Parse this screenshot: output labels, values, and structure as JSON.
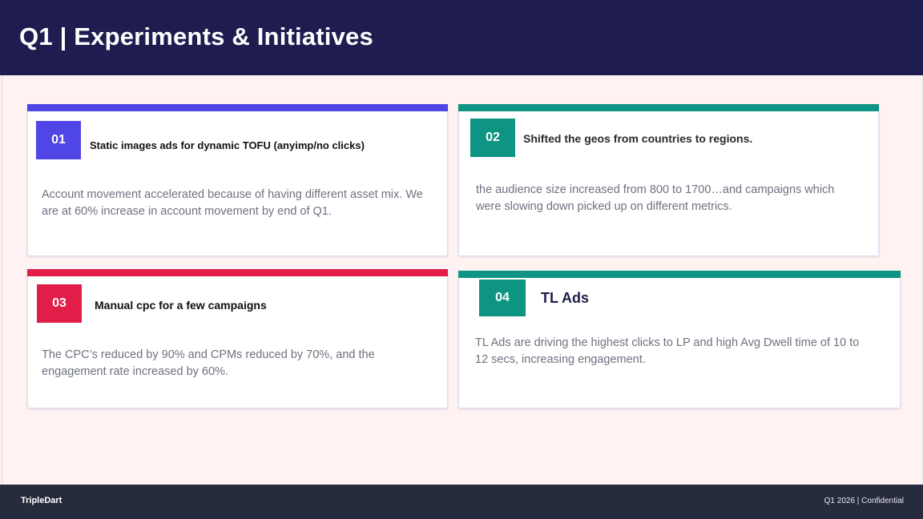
{
  "header": {
    "title": "Q1 | Experiments & Initiatives"
  },
  "cards": [
    {
      "number": "01",
      "title": "Static images ads for dynamic TOFU (anyimp/no clicks)",
      "description": "Account movement accelerated because of having different asset mix. We are at 60% increase in account movement by end of Q1.",
      "accent_color": "#4f46e5"
    },
    {
      "number": "02",
      "title": "Shifted the geos from countries to regions.",
      "description": "the audience size increased from 800 to 1700…and campaigns which were slowing down picked up on different metrics.",
      "accent_color": "#0e9483"
    },
    {
      "number": "03",
      "title": "Manual cpc for a few campaigns",
      "description": " The CPC’s reduced by 90% and CPMs reduced by 70%,  and the engagement rate increased by 60%.",
      "accent_color": "#e11d48"
    },
    {
      "number": "04",
      "title": "TL Ads",
      "description": " TL Ads are driving the highest clicks to LP and high Avg Dwell time of 10 to 12 secs, increasing engagement.",
      "accent_color": "#0e9483"
    }
  ],
  "footer": {
    "brand": "TripleDart",
    "confidential": "Q1 2026 | Confidential"
  }
}
